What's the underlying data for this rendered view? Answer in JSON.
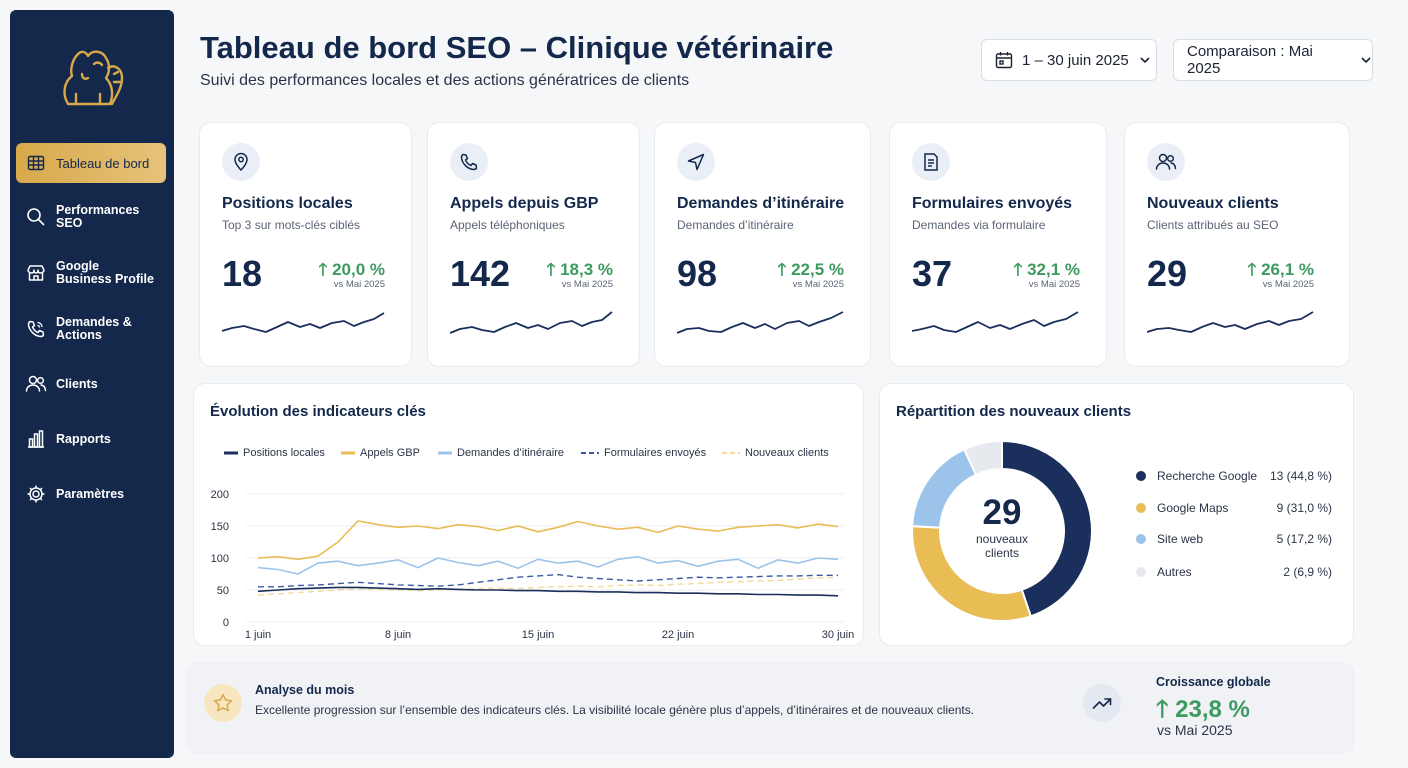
{
  "nav": {
    "items": [
      {
        "label": "Tableau de bord",
        "icon": "grid-icon",
        "active": true
      },
      {
        "label": "Performances\nSEO",
        "icon": "search-icon"
      },
      {
        "label": "Google\nBusiness Profile",
        "icon": "store-icon"
      },
      {
        "label": "Demandes &\nActions",
        "icon": "phone-icon"
      },
      {
        "label": "Clients",
        "icon": "users-icon"
      },
      {
        "label": "Rapports",
        "icon": "bar-chart-icon"
      },
      {
        "label": "Paramètres",
        "icon": "gear-icon"
      }
    ]
  },
  "header": {
    "title": "Tableau de bord SEO – Clinique vétérinaire",
    "subtitle": "Suivi des performances locales et des actions génératrices de clients",
    "date_range": "1 – 30 juin 2025",
    "comparison": "Comparaison : Mai 2025"
  },
  "kpis": [
    {
      "title": "Positions locales",
      "subtitle": "Top 3 sur mots-clés ciblés",
      "value": "18",
      "delta": "20,0 %",
      "vs": "vs Mai 2025",
      "icon": "map-pin-icon"
    },
    {
      "title": "Appels depuis GBP",
      "subtitle": "Appels téléphoniques",
      "value": "142",
      "delta": "18,3 %",
      "vs": "vs Mai 2025",
      "icon": "phone-icon"
    },
    {
      "title": "Demandes d’itinéraire",
      "subtitle": "Demandes d’itinéraire",
      "value": "98",
      "delta": "22,5 %",
      "vs": "vs Mai 2025",
      "icon": "navigation-icon"
    },
    {
      "title": "Formulaires envoyés",
      "subtitle": "Demandes via formulaire",
      "value": "37",
      "delta": "32,1 %",
      "vs": "vs Mai 2025",
      "icon": "form-icon"
    },
    {
      "title": "Nouveaux clients",
      "subtitle": "Clients attribués au SEO",
      "value": "29",
      "delta": "26,1 %",
      "vs": "vs Mai 2025",
      "icon": "users-icon"
    }
  ],
  "colors": {
    "navy": "#1b2f5c",
    "gold": "#e8bd54",
    "light_blue": "#9cc4ea",
    "dashed_blue": "#3a5aa0",
    "light_gold": "#f3d99a",
    "gray": "#e6e9ee",
    "green": "#3d9b5f"
  },
  "chart_data": [
    {
      "type": "line",
      "title": "Évolution des indicateurs clés",
      "x_labels": [
        "1 juin",
        "8 juin",
        "15 juin",
        "22 juin",
        "30 juin"
      ],
      "ylim": [
        0,
        200
      ],
      "yticks": [
        0,
        50,
        100,
        150,
        200
      ],
      "grid": true,
      "legend": "top",
      "series": [
        {
          "name": "Positions locales",
          "color": "#1b2f5c",
          "dash": false,
          "values": [
            48,
            50,
            52,
            53,
            54,
            54,
            53,
            52,
            51,
            52,
            51,
            50,
            50,
            49,
            49,
            48,
            48,
            47,
            47,
            46,
            46,
            45,
            45,
            44,
            44,
            43,
            43,
            42,
            42,
            41
          ]
        },
        {
          "name": "Appels GBP",
          "color": "#e8bd54",
          "dash": false,
          "values": [
            100,
            102,
            98,
            103,
            125,
            158,
            152,
            148,
            150,
            146,
            152,
            149,
            143,
            150,
            141,
            148,
            157,
            150,
            145,
            148,
            140,
            150,
            145,
            142,
            148,
            150,
            152,
            147,
            153,
            149
          ]
        },
        {
          "name": "Demandes d’itinéraire",
          "color": "#9cc4ea",
          "dash": false,
          "values": [
            85,
            82,
            75,
            92,
            95,
            88,
            92,
            97,
            85,
            100,
            93,
            88,
            95,
            84,
            98,
            92,
            95,
            86,
            98,
            102,
            92,
            96,
            87,
            95,
            98,
            84,
            97,
            92,
            100,
            98
          ]
        },
        {
          "name": "Formulaires envoyés",
          "color": "#3a5aa0",
          "dash": true,
          "values": [
            55,
            55,
            57,
            58,
            60,
            62,
            60,
            58,
            57,
            56,
            58,
            62,
            66,
            70,
            72,
            74,
            70,
            68,
            66,
            64,
            66,
            68,
            70,
            69,
            70,
            71,
            72,
            72,
            73,
            73
          ]
        },
        {
          "name": "Nouveaux clients",
          "color": "#f3d99a",
          "dash": true,
          "values": [
            42,
            44,
            46,
            48,
            50,
            52,
            51,
            50,
            49,
            50,
            51,
            52,
            53,
            52,
            54,
            55,
            56,
            55,
            57,
            58,
            57,
            59,
            60,
            62,
            63,
            64,
            65,
            67,
            69,
            70
          ]
        }
      ]
    },
    {
      "type": "pie",
      "title": "Répartition des nouveaux clients",
      "center_value": "29",
      "center_label": "nouveaux\nclients",
      "slices": [
        {
          "label": "Recherche Google",
          "value": 13,
          "display": "13 (44,8 %)",
          "color": "#1b2f5c"
        },
        {
          "label": "Google Maps",
          "value": 9,
          "display": "9 (31,0 %)",
          "color": "#e8bd54"
        },
        {
          "label": "Site web",
          "value": 5,
          "display": "5 (17,2 %)",
          "color": "#9cc4ea"
        },
        {
          "label": "Autres",
          "value": 2,
          "display": "2 (6,9 %)",
          "color": "#e6e9ee"
        }
      ]
    }
  ],
  "analysis": {
    "title": "Analyse du mois",
    "text": "Excellente progression sur l’ensemble des indicateurs clés. La visibilité locale génère plus d’appels, d’itinéraires et de nouveaux clients.",
    "growth_title": "Croissance globale",
    "growth_value": "23,8 %",
    "growth_vs": "vs Mai 2025"
  }
}
